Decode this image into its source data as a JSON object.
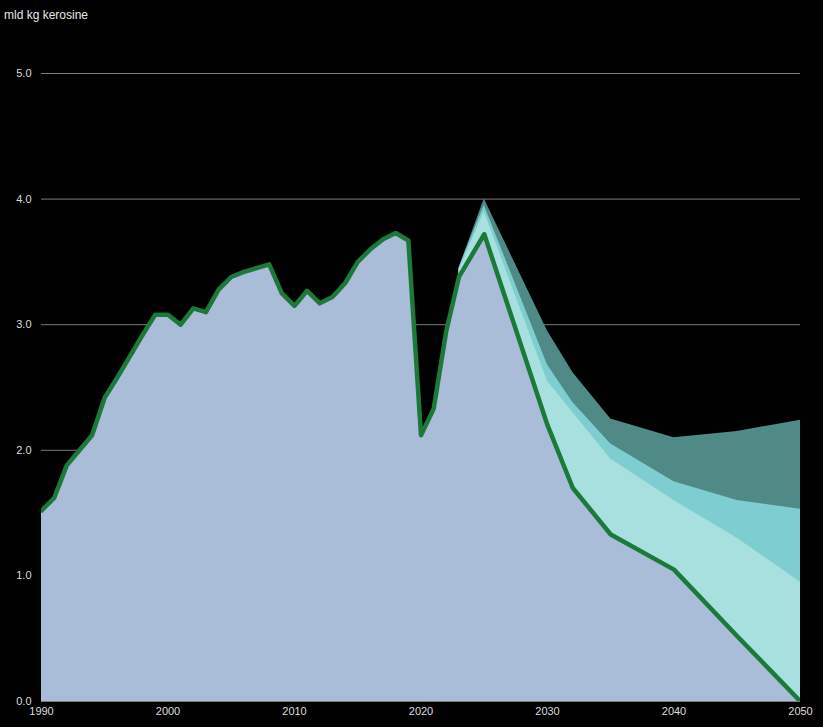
{
  "chart_data": {
    "type": "area",
    "ylabel": "mld kg kerosine",
    "x": [
      1990,
      1991,
      1992,
      1993,
      1994,
      1995,
      1996,
      1997,
      1998,
      1999,
      2000,
      2001,
      2002,
      2003,
      2004,
      2005,
      2006,
      2007,
      2008,
      2009,
      2010,
      2011,
      2012,
      2013,
      2014,
      2015,
      2016,
      2017,
      2018,
      2019,
      2020,
      2021,
      2022,
      2023,
      2025,
      2030,
      2032,
      2035,
      2040,
      2045,
      2050
    ],
    "series": [
      {
        "type": "area",
        "color": "#4f8a86",
        "values": [
          null,
          null,
          null,
          null,
          null,
          null,
          null,
          null,
          null,
          null,
          null,
          null,
          null,
          null,
          null,
          null,
          null,
          null,
          null,
          null,
          null,
          null,
          null,
          null,
          null,
          null,
          null,
          null,
          null,
          null,
          null,
          null,
          null,
          3.45,
          4.0,
          2.95,
          2.62,
          2.25,
          2.1,
          2.15,
          2.24
        ]
      },
      {
        "type": "area",
        "color": "#7ecdd0",
        "values": [
          null,
          null,
          null,
          null,
          null,
          null,
          null,
          null,
          null,
          null,
          null,
          null,
          null,
          null,
          null,
          null,
          null,
          null,
          null,
          null,
          null,
          null,
          null,
          null,
          null,
          null,
          null,
          null,
          null,
          null,
          null,
          null,
          null,
          3.45,
          3.95,
          2.68,
          2.38,
          2.05,
          1.75,
          1.6,
          1.53
        ]
      },
      {
        "type": "area",
        "color": "#a8dfdf",
        "values": [
          null,
          null,
          null,
          null,
          null,
          null,
          null,
          null,
          null,
          null,
          null,
          null,
          null,
          null,
          null,
          null,
          null,
          null,
          null,
          null,
          null,
          null,
          null,
          null,
          null,
          null,
          null,
          null,
          null,
          null,
          null,
          null,
          null,
          3.43,
          3.9,
          2.55,
          2.3,
          1.93,
          1.6,
          1.3,
          0.95
        ]
      },
      {
        "type": "line",
        "color": "#1b7a3a",
        "values": [
          1.52,
          1.62,
          1.88,
          2.0,
          2.12,
          2.42,
          2.58,
          2.75,
          2.92,
          3.08,
          3.08,
          3.0,
          3.13,
          3.1,
          3.28,
          3.38,
          3.42,
          3.45,
          3.48,
          3.25,
          3.15,
          3.27,
          3.17,
          3.22,
          3.33,
          3.5,
          3.6,
          3.68,
          3.73,
          3.67,
          2.12,
          2.33,
          2.95,
          3.38,
          3.72,
          2.2,
          1.7,
          1.33,
          1.05,
          0.52,
          0
        ]
      }
    ],
    "xlim": [
      1990,
      2050
    ],
    "xticks": [
      1990,
      2000,
      2010,
      2020,
      2030,
      2040,
      2050
    ],
    "ylim": [
      0,
      5
    ],
    "yticks": [
      0,
      1,
      2,
      3,
      4,
      5
    ],
    "grid": true
  }
}
